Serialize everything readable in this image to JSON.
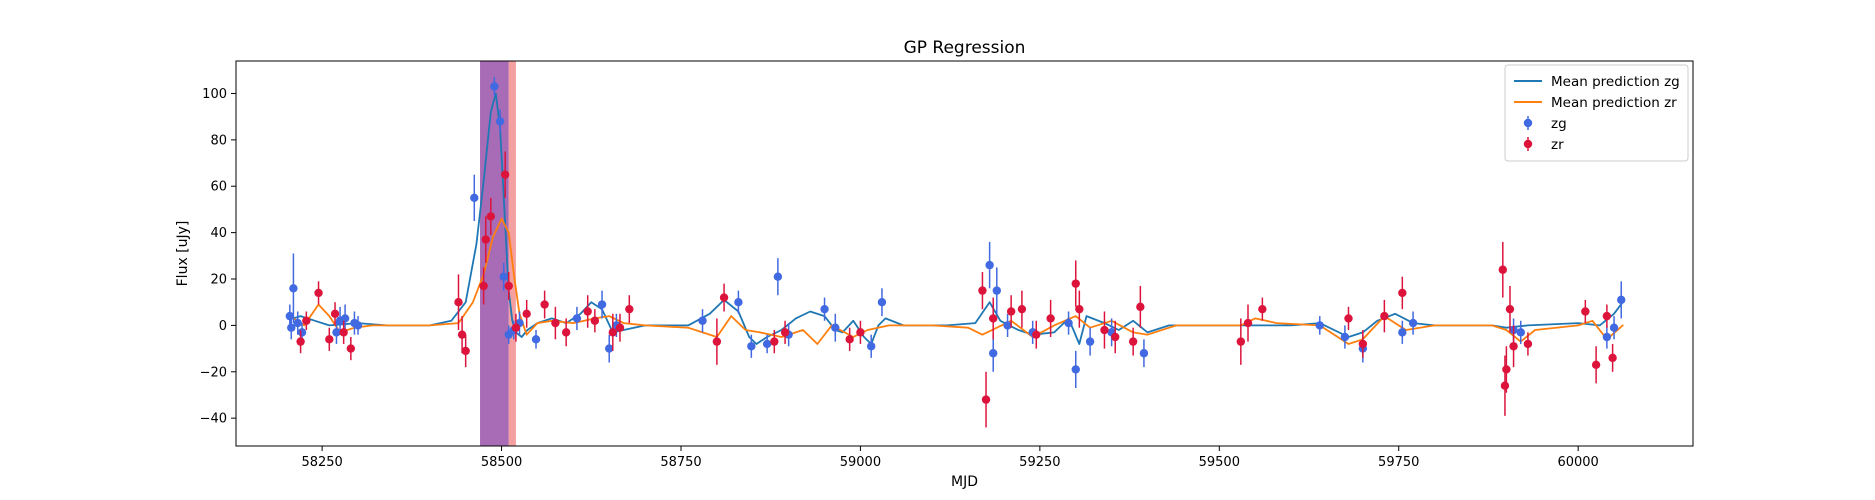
{
  "chart_data": {
    "type": "scatter",
    "title": "GP Regression",
    "xlabel": "MJD",
    "ylabel": "Flux [uJy]",
    "xlim": [
      58130,
      60160
    ],
    "ylim": [
      -52,
      114
    ],
    "x_ticks": [
      58250,
      58500,
      58750,
      59000,
      59250,
      59500,
      59750,
      60000
    ],
    "y_ticks": [
      -40,
      -20,
      0,
      20,
      40,
      60,
      80,
      100
    ],
    "grid": false,
    "legend": {
      "position": "top-right",
      "entries": [
        {
          "label": "Mean prediction zg",
          "kind": "line",
          "color": "#1f77b4"
        },
        {
          "label": "Mean prediction zr",
          "kind": "line",
          "color": "#ff7f0e"
        },
        {
          "label": "zg",
          "kind": "errorbar",
          "color": "#4169e1"
        },
        {
          "label": "zr",
          "kind": "errorbar",
          "color": "#dc143c"
        }
      ]
    },
    "shaded_regions": [
      {
        "x0": 58470,
        "x1": 58510,
        "color": "#8b3a9e",
        "opacity": 0.75
      },
      {
        "x0": 58510,
        "x1": 58520,
        "color": "#f08080",
        "opacity": 0.75
      }
    ],
    "lines": [
      {
        "name": "Mean prediction zg",
        "color": "#1f77b4",
        "points": [
          [
            58210,
            3
          ],
          [
            58220,
            4
          ],
          [
            58240,
            2
          ],
          [
            58260,
            0
          ],
          [
            58280,
            0.5
          ],
          [
            58300,
            1
          ],
          [
            58340,
            0
          ],
          [
            58400,
            0
          ],
          [
            58430,
            2
          ],
          [
            58450,
            10
          ],
          [
            58465,
            35
          ],
          [
            58475,
            62
          ],
          [
            58485,
            92
          ],
          [
            58492,
            100
          ],
          [
            58498,
            85
          ],
          [
            58504,
            50
          ],
          [
            58510,
            15
          ],
          [
            58515,
            2
          ],
          [
            58520,
            -3
          ],
          [
            58528,
            -5
          ],
          [
            58536,
            -2
          ],
          [
            58550,
            1
          ],
          [
            58570,
            3
          ],
          [
            58590,
            1
          ],
          [
            58610,
            5
          ],
          [
            58625,
            10
          ],
          [
            58640,
            7
          ],
          [
            58655,
            -3
          ],
          [
            58670,
            -2
          ],
          [
            58700,
            0
          ],
          [
            58760,
            0
          ],
          [
            58790,
            5
          ],
          [
            58810,
            11
          ],
          [
            58830,
            6
          ],
          [
            58845,
            -5
          ],
          [
            58855,
            -8
          ],
          [
            58870,
            -5
          ],
          [
            58890,
            -2
          ],
          [
            58910,
            3
          ],
          [
            58930,
            6
          ],
          [
            58950,
            4
          ],
          [
            58965,
            -2
          ],
          [
            58975,
            -3
          ],
          [
            58990,
            2
          ],
          [
            59005,
            -5
          ],
          [
            59015,
            -8
          ],
          [
            59025,
            0
          ],
          [
            59035,
            3
          ],
          [
            59060,
            0
          ],
          [
            59120,
            0
          ],
          [
            59160,
            1
          ],
          [
            59180,
            10
          ],
          [
            59195,
            2
          ],
          [
            59220,
            -2
          ],
          [
            59240,
            -4
          ],
          [
            59270,
            -3
          ],
          [
            59290,
            3
          ],
          [
            59305,
            -8
          ],
          [
            59315,
            4
          ],
          [
            59340,
            1
          ],
          [
            59360,
            -2
          ],
          [
            59380,
            2
          ],
          [
            59400,
            -3
          ],
          [
            59430,
            0
          ],
          [
            59500,
            0
          ],
          [
            59600,
            0
          ],
          [
            59640,
            1
          ],
          [
            59680,
            -5
          ],
          [
            59700,
            -3
          ],
          [
            59720,
            2
          ],
          [
            59745,
            5
          ],
          [
            59770,
            1
          ],
          [
            59800,
            0
          ],
          [
            59880,
            0
          ],
          [
            59900,
            -1
          ],
          [
            59930,
            0
          ],
          [
            60000,
            1
          ],
          [
            60030,
            0
          ],
          [
            60050,
            5
          ],
          [
            60062,
            10
          ]
        ]
      },
      {
        "name": "Mean prediction zr",
        "color": "#ff7f0e",
        "points": [
          [
            58210,
            3
          ],
          [
            58225,
            0
          ],
          [
            58245,
            9
          ],
          [
            58260,
            4
          ],
          [
            58275,
            -3
          ],
          [
            58295,
            -1
          ],
          [
            58320,
            0
          ],
          [
            58400,
            0
          ],
          [
            58440,
            1
          ],
          [
            58460,
            10
          ],
          [
            58475,
            22
          ],
          [
            58488,
            38
          ],
          [
            58500,
            46
          ],
          [
            58510,
            40
          ],
          [
            58518,
            20
          ],
          [
            58525,
            5
          ],
          [
            58535,
            -4
          ],
          [
            58550,
            1
          ],
          [
            58570,
            2
          ],
          [
            58600,
            1
          ],
          [
            58630,
            3
          ],
          [
            58650,
            4
          ],
          [
            58670,
            1
          ],
          [
            58700,
            0
          ],
          [
            58760,
            -1
          ],
          [
            58780,
            -3
          ],
          [
            58800,
            -5
          ],
          [
            58820,
            4
          ],
          [
            58840,
            -2
          ],
          [
            58860,
            -3
          ],
          [
            58890,
            -5
          ],
          [
            58920,
            -2
          ],
          [
            58940,
            -8
          ],
          [
            58960,
            0
          ],
          [
            58990,
            -5
          ],
          [
            59010,
            -2
          ],
          [
            59040,
            0
          ],
          [
            59100,
            0
          ],
          [
            59150,
            -1
          ],
          [
            59170,
            -4
          ],
          [
            59190,
            -1
          ],
          [
            59210,
            2
          ],
          [
            59240,
            -5
          ],
          [
            59270,
            0
          ],
          [
            59300,
            4
          ],
          [
            59320,
            -1
          ],
          [
            59350,
            2
          ],
          [
            59380,
            -3
          ],
          [
            59400,
            -4
          ],
          [
            59440,
            0
          ],
          [
            59530,
            0
          ],
          [
            59550,
            3
          ],
          [
            59580,
            1
          ],
          [
            59640,
            0
          ],
          [
            59680,
            -8
          ],
          [
            59700,
            -6
          ],
          [
            59730,
            4
          ],
          [
            59760,
            -2
          ],
          [
            59800,
            0
          ],
          [
            59880,
            0
          ],
          [
            59900,
            -2
          ],
          [
            59920,
            -7
          ],
          [
            59940,
            -2
          ],
          [
            60000,
            0
          ],
          [
            60020,
            2
          ],
          [
            60040,
            -6
          ],
          [
            60062,
            0
          ]
        ]
      }
    ],
    "series": [
      {
        "name": "zg",
        "color": "#4169e1",
        "points": [
          [
            58205,
            4,
            5
          ],
          [
            58207,
            -1,
            5
          ],
          [
            58210,
            16,
            15
          ],
          [
            58216,
            1,
            5
          ],
          [
            58222,
            -3,
            4
          ],
          [
            58270,
            -3,
            5
          ],
          [
            58275,
            2,
            6
          ],
          [
            58282,
            3,
            6
          ],
          [
            58295,
            1,
            5
          ],
          [
            58300,
            0,
            4
          ],
          [
            58462,
            55,
            10
          ],
          [
            58490,
            103,
            4
          ],
          [
            58498,
            88,
            5
          ],
          [
            58503,
            21,
            6
          ],
          [
            58510,
            -4,
            4
          ],
          [
            58517,
            -2,
            4
          ],
          [
            58525,
            1,
            5
          ],
          [
            58548,
            -6,
            4
          ],
          [
            58605,
            3,
            5
          ],
          [
            58640,
            9,
            6
          ],
          [
            58650,
            -10,
            6
          ],
          [
            58660,
            0,
            5
          ],
          [
            58780,
            2,
            5
          ],
          [
            58830,
            10,
            5
          ],
          [
            58848,
            -9,
            5
          ],
          [
            58870,
            -8,
            4
          ],
          [
            58885,
            21,
            8
          ],
          [
            58900,
            -4,
            5
          ],
          [
            58950,
            7,
            5
          ],
          [
            58965,
            -1,
            6
          ],
          [
            59015,
            -9,
            5
          ],
          [
            59030,
            10,
            6
          ],
          [
            59180,
            26,
            10
          ],
          [
            59190,
            15,
            10
          ],
          [
            59185,
            -12,
            8
          ],
          [
            59205,
            0,
            5
          ],
          [
            59240,
            -3,
            5
          ],
          [
            59290,
            1,
            5
          ],
          [
            59300,
            -19,
            8
          ],
          [
            59320,
            -7,
            6
          ],
          [
            59350,
            -3,
            6
          ],
          [
            59395,
            -12,
            6
          ],
          [
            59640,
            0,
            4
          ],
          [
            59675,
            -5,
            5
          ],
          [
            59700,
            -10,
            6
          ],
          [
            59755,
            -3,
            5
          ],
          [
            59770,
            1,
            5
          ],
          [
            59910,
            -2,
            5
          ],
          [
            59920,
            -3,
            5
          ],
          [
            60040,
            -5,
            5
          ],
          [
            60050,
            -1,
            5
          ],
          [
            60060,
            11,
            8
          ]
        ]
      },
      {
        "name": "zr",
        "color": "#dc143c",
        "points": [
          [
            58220,
            -7,
            5
          ],
          [
            58228,
            2,
            4
          ],
          [
            58245,
            14,
            5
          ],
          [
            58260,
            -6,
            5
          ],
          [
            58268,
            5,
            5
          ],
          [
            58280,
            -3,
            5
          ],
          [
            58290,
            -10,
            5
          ],
          [
            58440,
            10,
            12
          ],
          [
            58445,
            -4,
            8
          ],
          [
            58450,
            -11,
            7
          ],
          [
            58475,
            17,
            8
          ],
          [
            58478,
            37,
            10
          ],
          [
            58485,
            47,
            8
          ],
          [
            58505,
            65,
            10
          ],
          [
            58510,
            17,
            6
          ],
          [
            58520,
            -1,
            6
          ],
          [
            58535,
            5,
            6
          ],
          [
            58560,
            9,
            6
          ],
          [
            58575,
            1,
            7
          ],
          [
            58590,
            -3,
            6
          ],
          [
            58620,
            6,
            7
          ],
          [
            58630,
            2,
            5
          ],
          [
            58655,
            -3,
            8
          ],
          [
            58665,
            -1,
            6
          ],
          [
            58678,
            7,
            6
          ],
          [
            58800,
            -7,
            10
          ],
          [
            58810,
            12,
            6
          ],
          [
            58880,
            -7,
            5
          ],
          [
            58895,
            -3,
            5
          ],
          [
            58985,
            -6,
            5
          ],
          [
            59000,
            -3,
            5
          ],
          [
            59170,
            15,
            8
          ],
          [
            59175,
            -32,
            12
          ],
          [
            59185,
            3,
            9
          ],
          [
            59210,
            6,
            7
          ],
          [
            59225,
            7,
            8
          ],
          [
            59245,
            -4,
            6
          ],
          [
            59265,
            3,
            8
          ],
          [
            59300,
            18,
            10
          ],
          [
            59305,
            7,
            8
          ],
          [
            59340,
            -2,
            8
          ],
          [
            59355,
            -5,
            7
          ],
          [
            59380,
            -7,
            6
          ],
          [
            59390,
            8,
            9
          ],
          [
            59530,
            -7,
            10
          ],
          [
            59540,
            1,
            8
          ],
          [
            59560,
            7,
            5
          ],
          [
            59680,
            3,
            5
          ],
          [
            59700,
            -8,
            6
          ],
          [
            59730,
            4,
            7
          ],
          [
            59755,
            14,
            7
          ],
          [
            59895,
            24,
            12
          ],
          [
            59898,
            -26,
            13
          ],
          [
            59900,
            -19,
            10
          ],
          [
            59905,
            7,
            10
          ],
          [
            59910,
            -9,
            9
          ],
          [
            59930,
            -8,
            5
          ],
          [
            60010,
            6,
            5
          ],
          [
            60025,
            -17,
            8
          ],
          [
            60040,
            4,
            5
          ],
          [
            60048,
            -14,
            6
          ]
        ]
      }
    ]
  }
}
